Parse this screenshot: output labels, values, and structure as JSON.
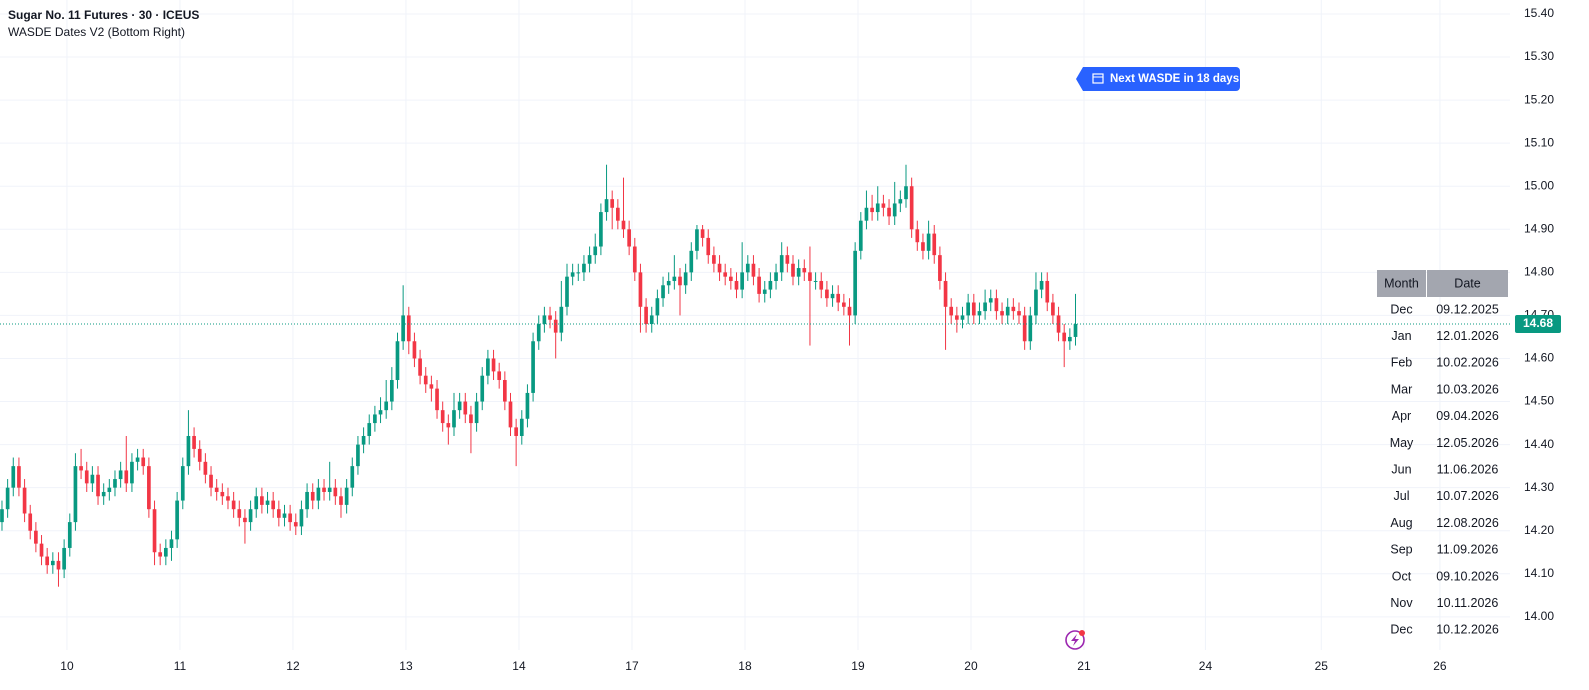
{
  "chart_data": {
    "type": "candlestick",
    "title": "Sugar No. 11 Futures · 30 · ICEUS",
    "subtitle": "WASDE Dates V2 (Bottom Right)",
    "up_color": "#089981",
    "down_color": "#f23645",
    "grid": true,
    "x": [
      0,
      1,
      2,
      3,
      4,
      5,
      6,
      7,
      8,
      9,
      10,
      11,
      12,
      13,
      14,
      15,
      16,
      17,
      18,
      19,
      20,
      21,
      22,
      23,
      24,
      25,
      26,
      27,
      28,
      29,
      30,
      31,
      32,
      33,
      34,
      35,
      36,
      37,
      38,
      39,
      40,
      41,
      42,
      43,
      44,
      45,
      46,
      47,
      48,
      49,
      50,
      51,
      52,
      53,
      54,
      55,
      56,
      57,
      58,
      59,
      60,
      61,
      62,
      63,
      64,
      65,
      66,
      67,
      68,
      69,
      70,
      71,
      72,
      73,
      74,
      75,
      76,
      77,
      78,
      79,
      80,
      81,
      82,
      83,
      84,
      85,
      86,
      87,
      88,
      89,
      90,
      91,
      92,
      93,
      94,
      95,
      96,
      97,
      98,
      99,
      100,
      101,
      102,
      103,
      104,
      105,
      106,
      107,
      108,
      109,
      110,
      111,
      112,
      113,
      114,
      115,
      116,
      117,
      118,
      119,
      120,
      121,
      122,
      123,
      124,
      125,
      126,
      127,
      128,
      129,
      130,
      131,
      132,
      133,
      134,
      135,
      136,
      137,
      138,
      139,
      140,
      141,
      142,
      143,
      144,
      145,
      146,
      147,
      148,
      149,
      150,
      151,
      152,
      153,
      154,
      155,
      156,
      157,
      158,
      159,
      160,
      161,
      162,
      163,
      164,
      165,
      166,
      167,
      168,
      169,
      170,
      171,
      172,
      173,
      174,
      175,
      176,
      177,
      178,
      179,
      180,
      181,
      182,
      183,
      184,
      185,
      186,
      187,
      188,
      189,
      190
    ],
    "open": [
      14.22,
      14.25,
      14.3,
      14.35,
      14.3,
      14.24,
      14.2,
      14.17,
      14.14,
      14.12,
      14.13,
      14.11,
      14.16,
      14.22,
      14.35,
      14.34,
      14.31,
      14.33,
      14.28,
      14.29,
      14.3,
      14.32,
      14.34,
      14.31,
      14.36,
      14.37,
      14.35,
      14.25,
      14.15,
      14.14,
      14.16,
      14.18,
      14.27,
      14.35,
      14.42,
      14.39,
      14.36,
      14.33,
      14.3,
      14.29,
      14.28,
      14.27,
      14.25,
      14.23,
      14.22,
      14.25,
      14.28,
      14.26,
      14.27,
      14.25,
      14.23,
      14.24,
      14.22,
      14.21,
      14.25,
      14.29,
      14.27,
      14.3,
      14.29,
      14.3,
      14.28,
      14.26,
      14.3,
      14.35,
      14.4,
      14.42,
      14.45,
      14.47,
      14.48,
      14.5,
      14.55,
      14.64,
      14.7,
      14.64,
      14.6,
      14.56,
      14.54,
      14.53,
      14.48,
      14.45,
      14.44,
      14.48,
      14.5,
      14.47,
      14.45,
      14.5,
      14.56,
      14.6,
      14.57,
      14.55,
      14.5,
      14.44,
      14.42,
      14.46,
      14.52,
      14.64,
      14.68,
      14.7,
      14.69,
      14.66,
      14.72,
      14.79,
      14.8,
      14.8,
      14.82,
      14.84,
      14.86,
      14.94,
      14.97,
      14.95,
      14.92,
      14.9,
      14.86,
      14.8,
      14.72,
      14.68,
      14.7,
      14.74,
      14.77,
      14.78,
      14.79,
      14.77,
      14.8,
      14.85,
      14.9,
      14.88,
      14.84,
      14.82,
      14.8,
      14.79,
      14.78,
      14.76,
      14.8,
      14.82,
      14.79,
      14.75,
      14.76,
      14.78,
      14.8,
      14.84,
      14.82,
      14.79,
      14.81,
      14.8,
      14.78,
      14.78,
      14.76,
      14.74,
      14.75,
      14.73,
      14.72,
      14.7,
      14.85,
      14.92,
      14.95,
      14.94,
      14.96,
      14.95,
      14.93,
      14.96,
      14.97,
      15.0,
      14.9,
      14.87,
      14.85,
      14.89,
      14.84,
      14.78,
      14.72,
      14.7,
      14.69,
      14.7,
      14.73,
      14.7,
      14.71,
      14.73,
      14.74,
      14.71,
      14.7,
      14.72,
      14.71,
      14.7,
      14.64,
      14.7,
      14.76,
      14.78,
      14.73,
      14.7,
      14.66,
      14.64,
      14.65
    ],
    "high": [
      14.27,
      14.32,
      14.37,
      14.37,
      14.32,
      14.26,
      14.22,
      14.19,
      14.16,
      14.15,
      14.15,
      14.18,
      14.24,
      14.38,
      14.39,
      14.36,
      14.35,
      14.35,
      14.31,
      14.32,
      14.34,
      14.36,
      14.42,
      14.38,
      14.39,
      14.39,
      14.37,
      14.27,
      14.17,
      14.18,
      14.2,
      14.29,
      14.37,
      14.48,
      14.44,
      14.41,
      14.38,
      14.35,
      14.32,
      14.31,
      14.3,
      14.29,
      14.27,
      14.25,
      14.27,
      14.3,
      14.3,
      14.29,
      14.29,
      14.27,
      14.26,
      14.26,
      14.24,
      14.27,
      14.31,
      14.31,
      14.32,
      14.32,
      14.36,
      14.32,
      14.3,
      14.32,
      14.37,
      14.42,
      14.44,
      14.47,
      14.49,
      14.51,
      14.55,
      14.58,
      14.66,
      14.77,
      14.72,
      14.66,
      14.62,
      14.58,
      14.56,
      14.55,
      14.5,
      14.47,
      14.52,
      14.52,
      14.52,
      14.49,
      14.52,
      14.58,
      14.62,
      14.62,
      14.59,
      14.57,
      14.52,
      14.46,
      14.48,
      14.54,
      14.66,
      14.7,
      14.72,
      14.72,
      14.71,
      14.78,
      14.82,
      14.82,
      14.82,
      14.84,
      14.86,
      14.89,
      14.96,
      15.05,
      14.99,
      14.97,
      15.02,
      14.92,
      14.88,
      14.82,
      14.74,
      14.72,
      14.76,
      14.79,
      14.8,
      14.84,
      14.81,
      14.82,
      14.87,
      14.91,
      14.91,
      14.9,
      14.86,
      14.84,
      14.82,
      14.81,
      14.8,
      14.87,
      14.84,
      14.84,
      14.81,
      14.78,
      14.8,
      14.82,
      14.87,
      14.86,
      14.84,
      14.83,
      14.83,
      14.86,
      14.8,
      14.8,
      14.78,
      14.77,
      14.77,
      14.75,
      14.74,
      14.87,
      14.94,
      14.99,
      14.98,
      15.0,
      14.98,
      14.97,
      15.01,
      14.99,
      15.05,
      15.02,
      14.92,
      14.89,
      14.92,
      14.91,
      14.86,
      14.8,
      14.74,
      14.72,
      14.72,
      14.75,
      14.75,
      14.73,
      14.76,
      14.76,
      14.76,
      14.73,
      14.74,
      14.74,
      14.73,
      14.72,
      14.72,
      14.8,
      14.8,
      14.8,
      14.75,
      14.72,
      14.68,
      14.67,
      14.75
    ],
    "low": [
      14.2,
      14.23,
      14.28,
      14.28,
      14.22,
      14.18,
      14.15,
      14.12,
      14.1,
      14.1,
      14.07,
      14.09,
      14.14,
      14.2,
      14.32,
      14.29,
      14.29,
      14.26,
      14.26,
      14.27,
      14.28,
      14.3,
      14.29,
      14.29,
      14.34,
      14.33,
      14.23,
      14.12,
      14.12,
      14.12,
      14.13,
      14.16,
      14.25,
      14.33,
      14.37,
      14.34,
      14.31,
      14.28,
      14.27,
      14.26,
      14.25,
      14.23,
      14.21,
      14.17,
      14.2,
      14.23,
      14.24,
      14.24,
      14.23,
      14.21,
      14.21,
      14.2,
      14.19,
      14.19,
      14.23,
      14.25,
      14.25,
      14.27,
      14.27,
      14.26,
      14.23,
      14.24,
      14.28,
      14.33,
      14.38,
      14.4,
      14.43,
      14.45,
      14.46,
      14.48,
      14.53,
      14.62,
      14.61,
      14.58,
      14.54,
      14.52,
      14.5,
      14.46,
      14.43,
      14.4,
      14.42,
      14.46,
      14.45,
      14.38,
      14.43,
      14.48,
      14.54,
      14.55,
      14.53,
      14.48,
      14.42,
      14.35,
      14.4,
      14.44,
      14.5,
      14.62,
      14.66,
      14.67,
      14.6,
      14.64,
      14.7,
      14.77,
      14.78,
      14.78,
      14.8,
      14.82,
      14.84,
      14.92,
      14.9,
      14.9,
      14.88,
      14.84,
      14.78,
      14.66,
      14.66,
      14.66,
      14.68,
      14.72,
      14.75,
      14.76,
      14.7,
      14.75,
      14.78,
      14.83,
      14.86,
      14.82,
      14.8,
      14.78,
      14.77,
      14.76,
      14.74,
      14.74,
      14.78,
      14.77,
      14.73,
      14.73,
      14.74,
      14.76,
      14.78,
      14.8,
      14.77,
      14.77,
      14.78,
      14.63,
      14.76,
      14.74,
      14.72,
      14.72,
      14.71,
      14.7,
      14.63,
      14.68,
      14.83,
      14.9,
      14.92,
      14.92,
      14.93,
      14.91,
      14.91,
      14.94,
      14.95,
      14.88,
      14.85,
      14.83,
      14.83,
      14.82,
      14.76,
      14.62,
      14.68,
      14.66,
      14.67,
      14.68,
      14.68,
      14.68,
      14.69,
      14.71,
      14.69,
      14.68,
      14.68,
      14.69,
      14.68,
      14.62,
      14.62,
      14.68,
      14.74,
      14.71,
      14.68,
      14.64,
      14.58,
      14.62,
      14.63
    ],
    "close": [
      14.25,
      14.3,
      14.35,
      14.3,
      14.24,
      14.2,
      14.17,
      14.14,
      14.12,
      14.13,
      14.11,
      14.16,
      14.22,
      14.35,
      14.34,
      14.31,
      14.33,
      14.28,
      14.29,
      14.3,
      14.32,
      14.34,
      14.31,
      14.36,
      14.37,
      14.35,
      14.25,
      14.15,
      14.14,
      14.16,
      14.18,
      14.27,
      14.35,
      14.42,
      14.39,
      14.36,
      14.33,
      14.3,
      14.29,
      14.28,
      14.27,
      14.25,
      14.23,
      14.22,
      14.25,
      14.28,
      14.26,
      14.27,
      14.25,
      14.23,
      14.24,
      14.22,
      14.21,
      14.25,
      14.29,
      14.27,
      14.3,
      14.29,
      14.3,
      14.28,
      14.26,
      14.3,
      14.35,
      14.4,
      14.42,
      14.45,
      14.47,
      14.48,
      14.5,
      14.55,
      14.64,
      14.7,
      14.64,
      14.6,
      14.56,
      14.54,
      14.53,
      14.48,
      14.45,
      14.44,
      14.48,
      14.5,
      14.47,
      14.45,
      14.5,
      14.56,
      14.6,
      14.57,
      14.55,
      14.5,
      14.44,
      14.42,
      14.46,
      14.52,
      14.64,
      14.68,
      14.7,
      14.69,
      14.66,
      14.72,
      14.79,
      14.8,
      14.8,
      14.82,
      14.84,
      14.86,
      14.94,
      14.97,
      14.95,
      14.92,
      14.9,
      14.86,
      14.8,
      14.72,
      14.68,
      14.7,
      14.74,
      14.77,
      14.78,
      14.79,
      14.77,
      14.8,
      14.85,
      14.9,
      14.88,
      14.84,
      14.82,
      14.8,
      14.79,
      14.78,
      14.76,
      14.8,
      14.82,
      14.79,
      14.75,
      14.76,
      14.78,
      14.8,
      14.84,
      14.82,
      14.79,
      14.81,
      14.8,
      14.78,
      14.78,
      14.76,
      14.74,
      14.75,
      14.73,
      14.72,
      14.7,
      14.85,
      14.92,
      14.95,
      14.94,
      14.96,
      14.95,
      14.93,
      14.96,
      14.97,
      15.0,
      14.9,
      14.87,
      14.85,
      14.89,
      14.84,
      14.78,
      14.72,
      14.7,
      14.69,
      14.7,
      14.73,
      14.7,
      14.71,
      14.73,
      14.74,
      14.71,
      14.7,
      14.72,
      14.71,
      14.7,
      14.64,
      14.7,
      14.76,
      14.78,
      14.73,
      14.7,
      14.66,
      14.64,
      14.65,
      14.68
    ],
    "xlim": [
      -0.35,
      266.9
    ],
    "xticks": [
      {
        "value": 11.5,
        "label": "10"
      },
      {
        "value": 31.5,
        "label": "11"
      },
      {
        "value": 51.5,
        "label": "12"
      },
      {
        "value": 71.5,
        "label": "13"
      },
      {
        "value": 91.5,
        "label": "14"
      },
      {
        "value": 111.5,
        "label": "17"
      },
      {
        "value": 131.5,
        "label": "18"
      },
      {
        "value": 151.5,
        "label": "19"
      },
      {
        "value": 171.5,
        "label": "20"
      },
      {
        "value": 191.5,
        "label": "21"
      },
      {
        "value": 213,
        "label": "24"
      },
      {
        "value": 233.5,
        "label": "25"
      },
      {
        "value": 254.5,
        "label": "26"
      }
    ],
    "ylim": [
      13.923,
      15.4325
    ],
    "yticks": [
      {
        "value": 14.0,
        "label": "14.00"
      },
      {
        "value": 14.1,
        "label": "14.10"
      },
      {
        "value": 14.2,
        "label": "14.20"
      },
      {
        "value": 14.3,
        "label": "14.30"
      },
      {
        "value": 14.4,
        "label": "14.40"
      },
      {
        "value": 14.5,
        "label": "14.50"
      },
      {
        "value": 14.6,
        "label": "14.60"
      },
      {
        "value": 14.7,
        "label": "14.70"
      },
      {
        "value": 14.8,
        "label": "14.80"
      },
      {
        "value": 14.9,
        "label": "14.90"
      },
      {
        "value": 15.0,
        "label": "15.00"
      },
      {
        "value": 15.1,
        "label": "15.10"
      },
      {
        "value": 15.2,
        "label": "15.20"
      },
      {
        "value": 15.3,
        "label": "15.30"
      },
      {
        "value": 15.4,
        "label": "15.40"
      }
    ],
    "last_price": 14.68
  },
  "wasde": {
    "badge": "Next WASDE in 18 days",
    "table": {
      "header": [
        "Month",
        "Date"
      ],
      "rows": [
        [
          "Dec",
          "09.12.2025"
        ],
        [
          "Jan",
          "12.01.2026"
        ],
        [
          "Feb",
          "10.02.2026"
        ],
        [
          "Mar",
          "10.03.2026"
        ],
        [
          "Apr",
          "09.04.2026"
        ],
        [
          "May",
          "12.05.2026"
        ],
        [
          "Jun",
          "11.06.2026"
        ],
        [
          "Jul",
          "10.07.2026"
        ],
        [
          "Aug",
          "12.08.2026"
        ],
        [
          "Sep",
          "11.09.2026"
        ],
        [
          "Oct",
          "09.10.2026"
        ],
        [
          "Nov",
          "10.11.2026"
        ],
        [
          "Dec",
          "10.12.2026"
        ]
      ]
    }
  }
}
